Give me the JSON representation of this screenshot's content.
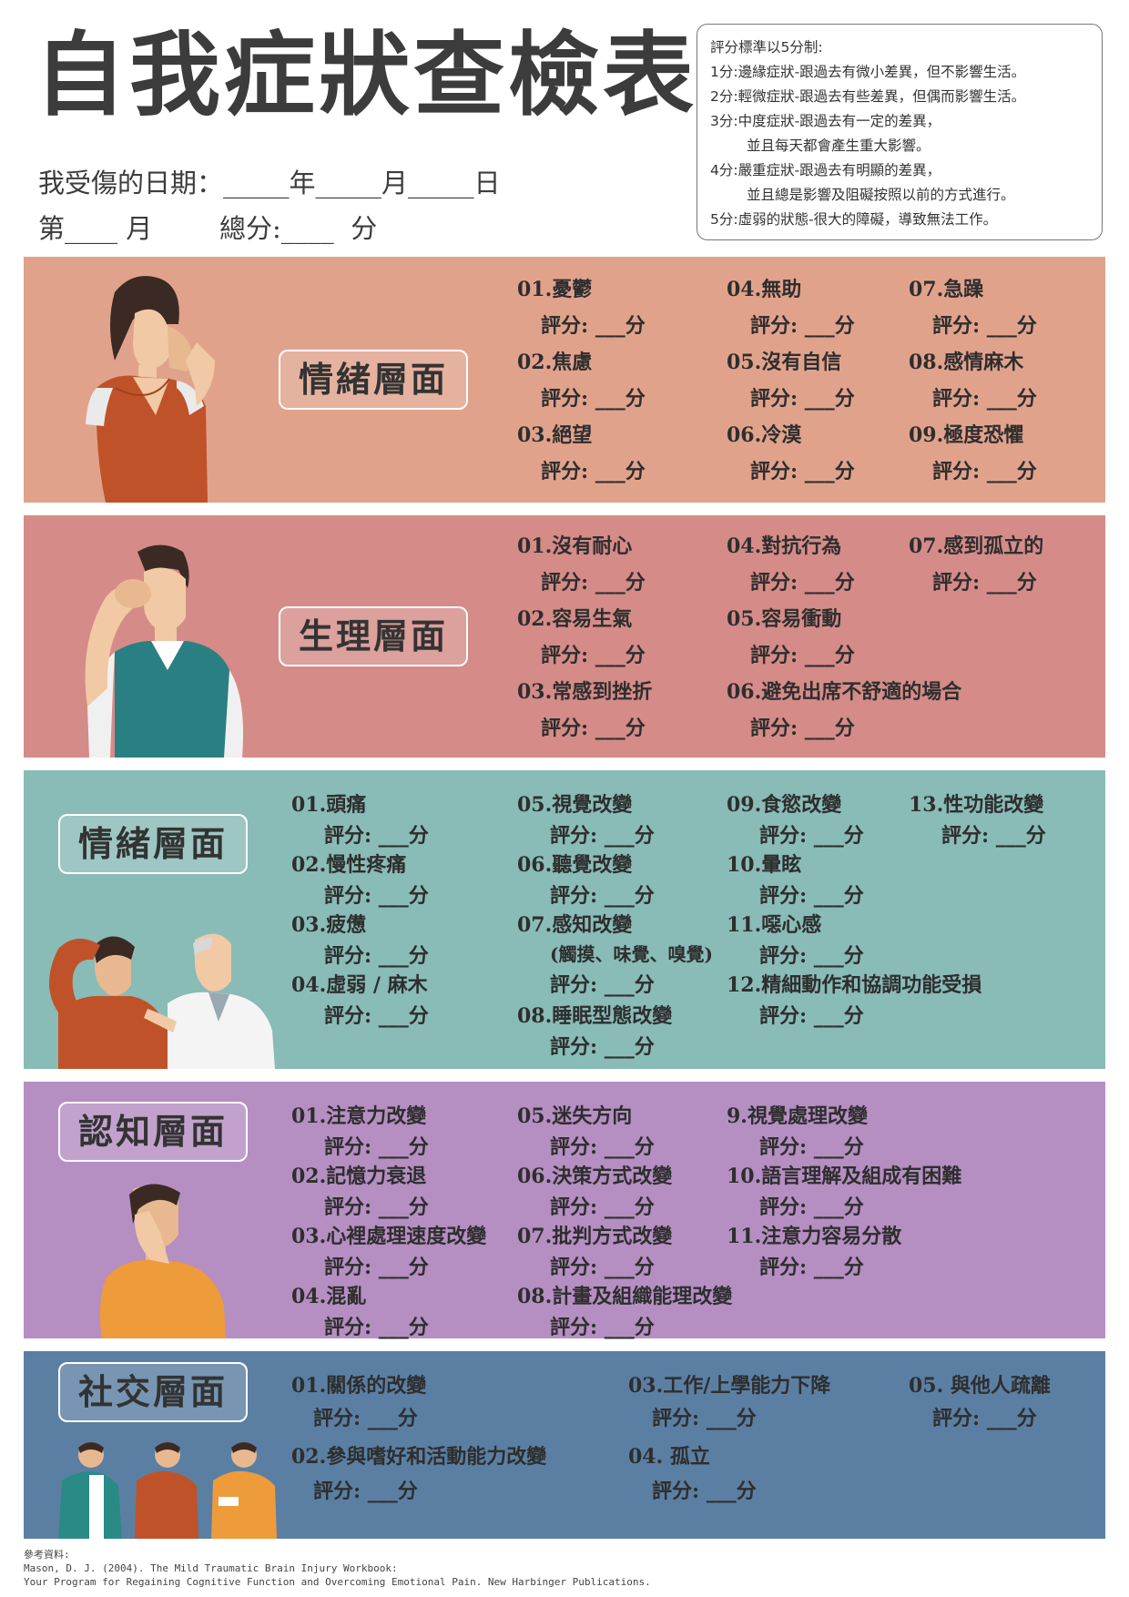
{
  "header": {
    "title": "自我症狀查檢表",
    "date_label": "我受傷的日期：",
    "date_blank": "_____",
    "year": "年",
    "month": "月",
    "day": "日",
    "month_prefix": "第",
    "month_blank": "____",
    "month_suffix": "月",
    "total_label": "總分:",
    "total_blank": "____",
    "total_unit": "分"
  },
  "scale": {
    "intro": "評分標準以5分制:",
    "lines": [
      "1分:邊緣症狀-跟過去有微小差異，但不影響生活。",
      "2分:輕微症狀-跟過去有些差異，但偶而影響生活。",
      "3分:中度症狀-跟過去有一定的差異，",
      "並且每天都會產生重大影響。",
      "4分:嚴重症狀-跟過去有明顯的差異，",
      "並且總是影響及阻礙按照以前的方式進行。",
      "5分:虛弱的狀態-很大的障礙，導致無法工作。"
    ]
  },
  "score_text": "評分: ___分",
  "sections": {
    "emotional": {
      "label": "情緒層面",
      "items": [
        "01.憂鬱",
        "02.焦慮",
        "03.絕望",
        "04.無助",
        "05.沒有自信",
        "06.冷漠",
        "07.急躁",
        "08.感情麻木",
        "09.極度恐懼"
      ]
    },
    "physical": {
      "label": "生理層面",
      "items": [
        "01.沒有耐心",
        "02.容易生氣",
        "03.常感到挫折",
        "04.對抗行為",
        "05.容易衝動",
        "06.避免出席不舒適的場合",
        "07.感到孤立的"
      ]
    },
    "emotional2": {
      "label": "情緒層面",
      "items": [
        "01.頭痛",
        "02.慢性疼痛",
        "03.疲憊",
        "04.虛弱 / 麻木",
        "05.視覺改變",
        "06.聽覺改變",
        "07.感知改變",
        "08.睡眠型態改變",
        "09.食慾改變",
        "10.暈眩",
        "11.噁心感",
        "12.精細動作和協調功能受損",
        "13.性功能改變"
      ],
      "sub_07": "(觸摸、味覺、嗅覺)"
    },
    "cognitive": {
      "label": "認知層面",
      "items": [
        "01.注意力改變",
        "02.記憶力衰退",
        "03.心裡處理速度改變",
        "04.混亂",
        "05.迷失方向",
        "06.決策方式改變",
        "07.批判方式改變",
        "08.計畫及組織能理改變",
        "9.視覺處理改變",
        "10.語言理解及組成有困難",
        "11.注意力容易分散"
      ]
    },
    "social": {
      "label": "社交層面",
      "items": [
        "01.關係的改變",
        "02.參與嗜好和活動能力改變",
        "03.工作/上學能力下降",
        "04. 孤立",
        "05. 與他人疏離"
      ]
    }
  },
  "reference": {
    "label": "參考資料:",
    "line1": "Mason, D. J. (2004). The Mild Traumatic Brain Injury Workbook:",
    "line2": "Your Program for Regaining Cognitive Function and Overcoming Emotional Pain. New Harbinger Publications."
  }
}
